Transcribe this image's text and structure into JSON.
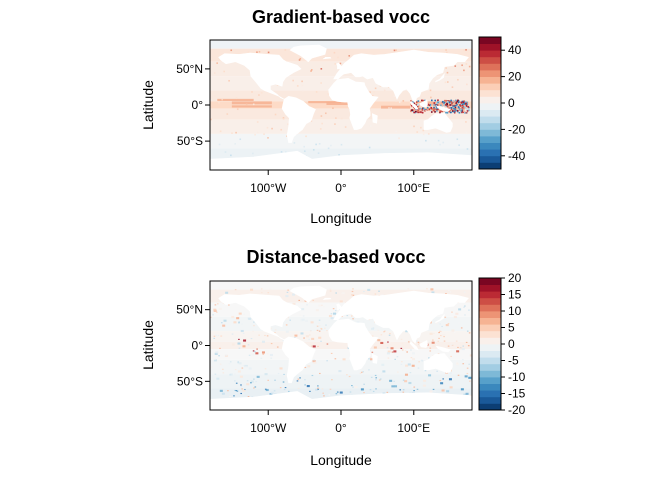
{
  "chart_data": [
    {
      "type": "heatmap",
      "title": "Gradient-based vocc",
      "xlabel": "Longitude",
      "ylabel": "Latitude",
      "x_ticks": [
        "100°W",
        "0°",
        "100°E"
      ],
      "x_tick_values": [
        -100,
        0,
        100
      ],
      "y_ticks": [
        "50°S",
        "0°",
        "50°N"
      ],
      "y_tick_values": [
        -50,
        0,
        50
      ],
      "xlim": [
        -180,
        180
      ],
      "ylim": [
        -90,
        90
      ],
      "colorbar": {
        "range": [
          -50,
          50
        ],
        "ticks": [
          "-40",
          "-20",
          "0",
          "20",
          "40"
        ],
        "tick_values": [
          -40,
          -20,
          0,
          20,
          40
        ],
        "bins": 20,
        "palette": [
          "#053061",
          "#2166ac",
          "#4393c3",
          "#92c5de",
          "#d1e5f0",
          "#f7f7f7",
          "#fddbc7",
          "#f4a582",
          "#d6604d",
          "#b2182b",
          "#67001f"
        ]
      }
    },
    {
      "type": "heatmap",
      "title": "Distance-based vocc",
      "xlabel": "Longitude",
      "ylabel": "Latitude",
      "x_ticks": [
        "100°W",
        "0°",
        "100°E"
      ],
      "x_tick_values": [
        -100,
        0,
        100
      ],
      "y_ticks": [
        "50°S",
        "0°",
        "50°N"
      ],
      "y_tick_values": [
        -50,
        0,
        50
      ],
      "xlim": [
        -180,
        180
      ],
      "ylim": [
        -90,
        90
      ],
      "colorbar": {
        "range": [
          -20,
          20
        ],
        "ticks": [
          "-20",
          "-15",
          "-10",
          "-5",
          "0",
          "5",
          "10",
          "15",
          "20"
        ],
        "tick_values": [
          -20,
          -15,
          -10,
          -5,
          0,
          5,
          10,
          15,
          20
        ],
        "bins": 20,
        "palette": [
          "#053061",
          "#2166ac",
          "#4393c3",
          "#92c5de",
          "#d1e5f0",
          "#f7f7f7",
          "#fddbc7",
          "#f4a582",
          "#d6604d",
          "#b2182b",
          "#67001f"
        ]
      }
    }
  ]
}
